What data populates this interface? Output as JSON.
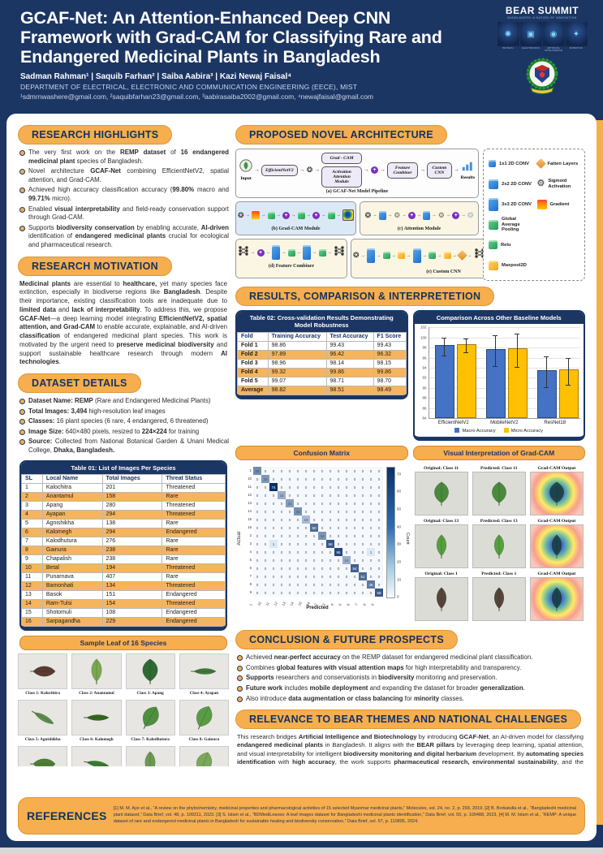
{
  "header": {
    "title": "GCAF-Net: An Attention-Enhanced Deep CNN Framework with Grad-CAM for Classifying Rare and Endangered Medicinal Plants in Bangladesh",
    "authors": "Sadman Rahman¹ | Saquib Farhan² | Saiba Aabira³ | Kazi Newaj Faisal⁴",
    "department": "DEPARTMENT OF ELECTRICAL, ELECTRONIC AND COMMUNICATION ENGINEERING (EECE), MIST",
    "emails": "¹sdmrnwashere@gmail.com, ²saquibfarhan23@gmail.com, ³aabirasaiba2002@gmail.com, ⁴newajfaisal@gmail.com",
    "bear": {
      "title": "BEAR SUMMIT",
      "subtitle": "BANGLADESH: A NATION OF INNOVATION",
      "pillars": [
        "BIOTECH",
        "ELECTRONICS",
        "ARTIFICIAL INTELLIGENCE",
        "ROBOTICS"
      ]
    }
  },
  "colors": {
    "navy": "#1C3664",
    "orange": "#F6AE4E",
    "row_alt": "#F6B45C",
    "macro_blue": "#4472C4",
    "micro_yellow": "#FFC000"
  },
  "highlights": {
    "heading": "RESEARCH HIGHLIGHTS",
    "bullets": [
      "The very first work on the **REMP dataset** of **16 endangered medicinal plant** species of Bangladesh.",
      "Novel architecture **GCAF-Net** combining EfficientNetV2, spatial attention, and Grad-CAM.",
      "Achieved high accuracy classification accuracy (**99.80%** macro and **99.71%** micro).",
      "Enabled **visual interpretability** and field-ready conservation support through Grad-CAM.",
      "Supports **biodiversity conservation** by enabling accurate, **AI-driven** identification of **endangered medicinal plants** crucial for ecological and pharmaceutical research."
    ]
  },
  "motivation": {
    "heading": "RESEARCH MOTIVATION",
    "text": "**Medicinal plants** are essential to **healthcare,** yet many species face extinction, especially in biodiverse regions like **Bangladesh**. Despite their importance, existing classification tools are inadequate due to **limited data** and **lack of interpretability**.  To address this, we propose **GCAF-Net**—a deep learning model integrating **EfficientNetV2, spatial attention, and Grad-CAM**  to enable accurate, explainable, and AI-driven **classification** of endangered medicinal plant species. This work is motivated by the urgent need to **preserve medicinal biodiversity** and support sustainable healthcare research through modern **AI technologies**."
  },
  "dataset": {
    "heading": "DATASET DETAILS",
    "bullets": [
      "**Dataset Name: REMP** (Rare and Endangered Medicinal Plants)",
      "**Total Images: 3,494** high-resolution leaf images",
      "**Classes:** 16 plant species (6 rare, 4 endangered, 6 threatened)",
      "**Image Size:** 640×480 pixels, resized to **224×224** for training",
      "**Source:** Collected from National Botanical Garden & Unani Medical College, **Dhaka, Bangladesh.**"
    ]
  },
  "table01": {
    "title": "Table 01: List of Images Per Species",
    "headers": [
      "SL",
      "Local Name",
      "Total Images",
      "Threat Status"
    ],
    "rows": [
      [
        "1",
        "Kalochitra",
        "201",
        "Threatened"
      ],
      [
        "2",
        "Anantamul",
        "158",
        "Rare"
      ],
      [
        "3",
        "Apang",
        "280",
        "Threatened"
      ],
      [
        "4",
        "Ayapan",
        "294",
        "Threatened"
      ],
      [
        "5",
        "Agnishikha",
        "138",
        "Rare"
      ],
      [
        "6",
        "Kalomegh",
        "294",
        "Endangered"
      ],
      [
        "7",
        "Kalodhutura",
        "276",
        "Rare"
      ],
      [
        "8",
        "Gainura",
        "238",
        "Rare"
      ],
      [
        "9",
        "Chapalish",
        "238",
        "Rare"
      ],
      [
        "10",
        "Betal",
        "194",
        "Threatened"
      ],
      [
        "11",
        "Punarnava",
        "407",
        "Rare"
      ],
      [
        "12",
        "Bamonhati",
        "134",
        "Threatened"
      ],
      [
        "13",
        "Basok",
        "151",
        "Endangered"
      ],
      [
        "14",
        "Ram-Tulsi",
        "154",
        "Threatened"
      ],
      [
        "15",
        "Shotomuli",
        "108",
        "Endangered"
      ],
      [
        "16",
        "Sarpagandha",
        "229",
        "Endangered"
      ]
    ]
  },
  "sample_leaf": {
    "title": "Sample Leaf of 16 Species",
    "items": [
      {
        "label": "Class 1: Kalochitra",
        "color": "#5a3b32",
        "variant": "oval",
        "rot": 90
      },
      {
        "label": "Class 2: Anantamul",
        "color": "#7aa84f",
        "variant": "oval",
        "rot": 0
      },
      {
        "label": "Class 3: Apang",
        "color": "#2e6b33",
        "variant": "broad",
        "rot": 0
      },
      {
        "label": "Class 4: Ayapan",
        "color": "#3f7a3a",
        "variant": "narrow",
        "rot": 90
      },
      {
        "label": "Class 5: Agnishikha",
        "color": "#5d8f4a",
        "variant": "narrow",
        "rot": 120
      },
      {
        "label": "Class 6: Kalomegh",
        "color": "#33691e",
        "variant": "narrow",
        "rot": 90
      },
      {
        "label": "Class 7: Kalodhutura",
        "color": "#4e8f3e",
        "variant": "broad",
        "rot": 30
      },
      {
        "label": "Class 8: Gainura",
        "color": "#5a9c46",
        "variant": "broad",
        "rot": 25
      },
      {
        "label": "Class 9: Chapalish",
        "color": "#4f7f35",
        "variant": "oval",
        "rot": 90
      },
      {
        "label": "Class 10: Betal",
        "color": "#3a7d2f",
        "variant": "narrow",
        "rot": 100
      },
      {
        "label": "Class 11: Punarnava",
        "color": "#6c9a52",
        "variant": "oval",
        "rot": 0
      },
      {
        "label": "Class 12: Bamonhati",
        "color": "#79a85a",
        "variant": "broad",
        "rot": 20
      },
      {
        "label": "Class 13: Basok",
        "color": "#6aa04e",
        "variant": "oval",
        "rot": 90
      },
      {
        "label": "Class 14: Ramtulsi",
        "color": "#3e8a35",
        "variant": "broad",
        "rot": 15
      },
      {
        "label": "Class 15: Shotomuli",
        "color": "#86b56a",
        "variant": "needle",
        "rot": 0
      },
      {
        "label": "Class 16: Sarpagandha",
        "color": "#5f984b",
        "variant": "narrow",
        "rot": 90
      }
    ]
  },
  "architecture": {
    "heading": "PROPOSED NOVEL ARCHITECTURE",
    "pipeline": {
      "input": "Input",
      "backbone": "EfficientNetV2",
      "branch_top": "Grad - CAM",
      "branch_bottom": "Activation Attention Module",
      "combiner": "Feature Combiner",
      "head": "Custom CNN",
      "output": "Results",
      "caption": "(a) GCAF-Net Model Pipeline"
    },
    "module_b": "(b) Grad-CAM Module",
    "module_c": "(c) Attention Module",
    "module_d": "(d) Feature Combiner",
    "module_e": "(e) Custom CNN",
    "softmax": "SOFTMAX",
    "legend": [
      {
        "icon": "conv-1x1-cube-icon",
        "label": "1x1 2D CONV"
      },
      {
        "icon": "conv-2x2-cube-icon",
        "label": "2x2 2D CONV"
      },
      {
        "icon": "conv-3x3-cube-icon",
        "label": "3x3 2D CONV"
      },
      {
        "icon": "global-average-pooling-icon",
        "label": "Global Average Pooling"
      },
      {
        "icon": "relu-icon",
        "label": "Relu"
      },
      {
        "icon": "maxpool2d-icon",
        "label": "Maxpool2D"
      },
      {
        "icon": "fatten-layers-icon",
        "label": "Fatten Layers"
      },
      {
        "icon": "sigmoid-activation-icon",
        "label": "Sigmoid Activation"
      },
      {
        "icon": "gradient-icon",
        "label": "Gradient"
      }
    ]
  },
  "results": {
    "heading": "RESULTS, COMPARISON & INTERPRETETION",
    "table02": {
      "title": "Table 02: Cross-validation Results Demonstrating Model Robustness",
      "headers": [
        "Fold",
        "Training Accuracy",
        "Test Accuracy",
        "F1 Score"
      ],
      "rows": [
        [
          "Fold 1",
          "98.86",
          "99.43",
          "99.43"
        ],
        [
          "Fold 2",
          "97.89",
          "96.42",
          "96.32"
        ],
        [
          "Fold 3",
          "98.96",
          "98.14",
          "98.15"
        ],
        [
          "Fold 4",
          "99.32",
          "99.86",
          "99.86"
        ],
        [
          "Fold 5",
          "99.07",
          "98.71",
          "98.70"
        ],
        [
          "Average",
          "98.82",
          "98.51",
          "98.49"
        ]
      ]
    }
  },
  "chart_data": [
    {
      "type": "bar",
      "title": "Comparison Across Other Baseline Models",
      "categories": [
        "EfficientNetV2",
        "MobileNetV2",
        "ResNet18"
      ],
      "series": [
        {
          "name": "Macro Accuracy",
          "color": "#4472C4",
          "values": [
            98.2,
            97.4,
            93.2
          ],
          "errors": [
            1.8,
            3.1,
            3.0
          ]
        },
        {
          "name": "Micro Accuracy",
          "color": "#FFC000",
          "values": [
            98.4,
            97.5,
            93.3
          ],
          "errors": [
            1.3,
            3.3,
            2.7
          ]
        }
      ],
      "ylim": [
        84,
        102
      ],
      "ytick_step": 2,
      "grid": true,
      "legend_position": "bottom"
    },
    {
      "type": "heatmap",
      "title": "Confusion Matrix",
      "xlabel": "Predicted",
      "ylabel": "Actual",
      "colorbar_label": "Count",
      "colorbar_ticks": [
        0,
        10,
        20,
        30,
        40,
        50,
        60,
        70
      ],
      "labels": [
        "1",
        "10",
        "11",
        "12",
        "13",
        "14",
        "15",
        "16",
        "2",
        "3",
        "4",
        "5",
        "6",
        "7",
        "8",
        "9"
      ],
      "diagonal": [
        38,
        33,
        74,
        24,
        31,
        36,
        19,
        50,
        34,
        58,
        65,
        24,
        54,
        51,
        45,
        58
      ],
      "off_diagonal": [
        {
          "row": 9,
          "col": 2,
          "value": 1
        },
        {
          "row": 10,
          "col": 14,
          "value": 1
        }
      ],
      "vmax": 74
    }
  ],
  "gradcam": {
    "title": "Visual Interpretation of Grad-CAM",
    "output_label": "Grad-CAM Output",
    "rows": [
      {
        "original": "Original: Class 11",
        "predicted": "Predicted: Class 11",
        "output": "Grad-CAM Output",
        "color": "#4a8a3c",
        "variant": "broad"
      },
      {
        "original": "Original: Class 13",
        "predicted": "Predicted: Class 13",
        "output": "Grad-CAM Output",
        "color": "#55a03f",
        "variant": "oval"
      },
      {
        "original": "Original: Class 1",
        "predicted": "Predicted: Class 1",
        "output": "Grad-CAM Output",
        "color": "#57453a",
        "variant": "oval"
      }
    ]
  },
  "conclusion": {
    "heading": "CONCLUSION & FUTURE PROSPECTS",
    "bullets": [
      "Achieved **near-perfect accuracy** on the REMP dataset for endangered medicinal plant classification.",
      "Combines **global features with visual attention maps** for high interpretability and transparency.",
      "**Supports** researchers and conservationists in **biodiversity** monitoring and preservation.",
      "**Future work** includes **mobile deployment** and expanding the dataset for broader **generalization**.",
      "Also introduce **data augmentation or class balancing** for **minority** classes."
    ]
  },
  "relevance": {
    "heading": "RELEVANCE TO BEAR THEMES AND NATIONAL CHALLENGES",
    "text": "This research bridges **Artificial Intelligence and Biotechnology** by introducing **GCAF-Net**, an AI-driven model for classifying **endangered medicinal plants** in Bangladesh. It aligns with the **BEAR pillars** by leveraging deep learning, spatial attention, and visual interpretability for intelligent **biodiversity monitoring and digital herbarium** development. By **automating species identification** with **high accuracy**, the work supports **pharmaceutical research, environmental sustainability**, and the **preservation of traditional medicinal knowledge**. It directly addresses national challenges such as biodiversity loss, limited healthcare access, and the lack of biological data infrastructure."
  },
  "references": {
    "heading": "REFERENCES",
    "text": "[1] M. M. Aye et al., “A review on the phytochemistry, medicinal properties and pharmacological activities of 15 selected Myanmar medicinal plants,” Molecules, vol. 24, no. 2, p. 293, 2019. [2] B. Borkatulla et al., “Bangladeshi medicinal plant dataset,” Data Brief, vol. 48, p. 109211, 2023. [3] S. Islam et al., “BDMediLeaves: A leaf images dataset for Bangladeshi medicinal plants identification,” Data Brief, vol. 50, p. 109488, 2023. [4] M. M. Islam et al., “REMP: A unique dataset of rare and endangered medicinal plants in Bangladesh for sustainable healing and biodiversity conservation,” Data Brief, vol. 57, p. 110895, 2024."
  }
}
